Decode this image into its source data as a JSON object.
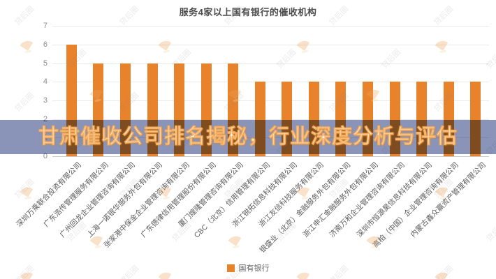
{
  "page": {
    "title": "服务4家以上国有银行的催收机构"
  },
  "banner": {
    "text": "甘肃催收公司排名揭秘，行业深度分析与评估"
  },
  "legend": {
    "label": "国有银行"
  },
  "watermark": {
    "text": "贷后圈",
    "icon": "fan-logo-icon"
  },
  "colors": {
    "bar": "#E8822B",
    "banner_bg": "#8A94B8",
    "banner_text": "#FFFFFF",
    "grid": "#E9E9E9",
    "axis": "#CCCCCC",
    "tick_text": "#8C8C8C",
    "label_text": "#5C5C5C",
    "title_text": "#4C4C4C"
  },
  "chart_data": {
    "type": "bar",
    "title": "服务4家以上国有银行的催收机构",
    "categories": [
      "深圳万乘联合投资有限公司",
      "广东浩传管理服务有限公司",
      "广州回龙企业管理咨询有限公司",
      "上海一诺银华服务外包有限公司",
      "张家港中保金企业管理咨询有限公司",
      "广东德律信用管理股份有限公司",
      "厦门煌隆管理咨询有限公司",
      "CBC（北京）信用管理有限公司",
      "浙江锐拓信息科技有限公司",
      "浙江友信科技服务有限公司",
      "银盛业（北京）金融服务外包有限公司",
      "浙江申汇金融服务外包有限公司",
      "济南万和企业管理咨询有限公司",
      "深圳市恒源昊信息科技有限公司",
      "高柏（中国）企业管理咨询有限公司",
      "内蒙古鑫众赢资产管理有限公司"
    ],
    "series": [
      {
        "name": "国有银行",
        "values": [
          6,
          5,
          5,
          5,
          5,
          5,
          5,
          4,
          4,
          4,
          4,
          4,
          4,
          4,
          4,
          4
        ]
      }
    ],
    "xlabel": "",
    "ylabel": "",
    "ylim": [
      0,
      7
    ],
    "yticks": [
      0,
      1,
      2,
      3,
      4,
      5,
      6,
      7
    ],
    "grid": true,
    "legend_position": "bottom",
    "bar_color": "#E8822B"
  }
}
